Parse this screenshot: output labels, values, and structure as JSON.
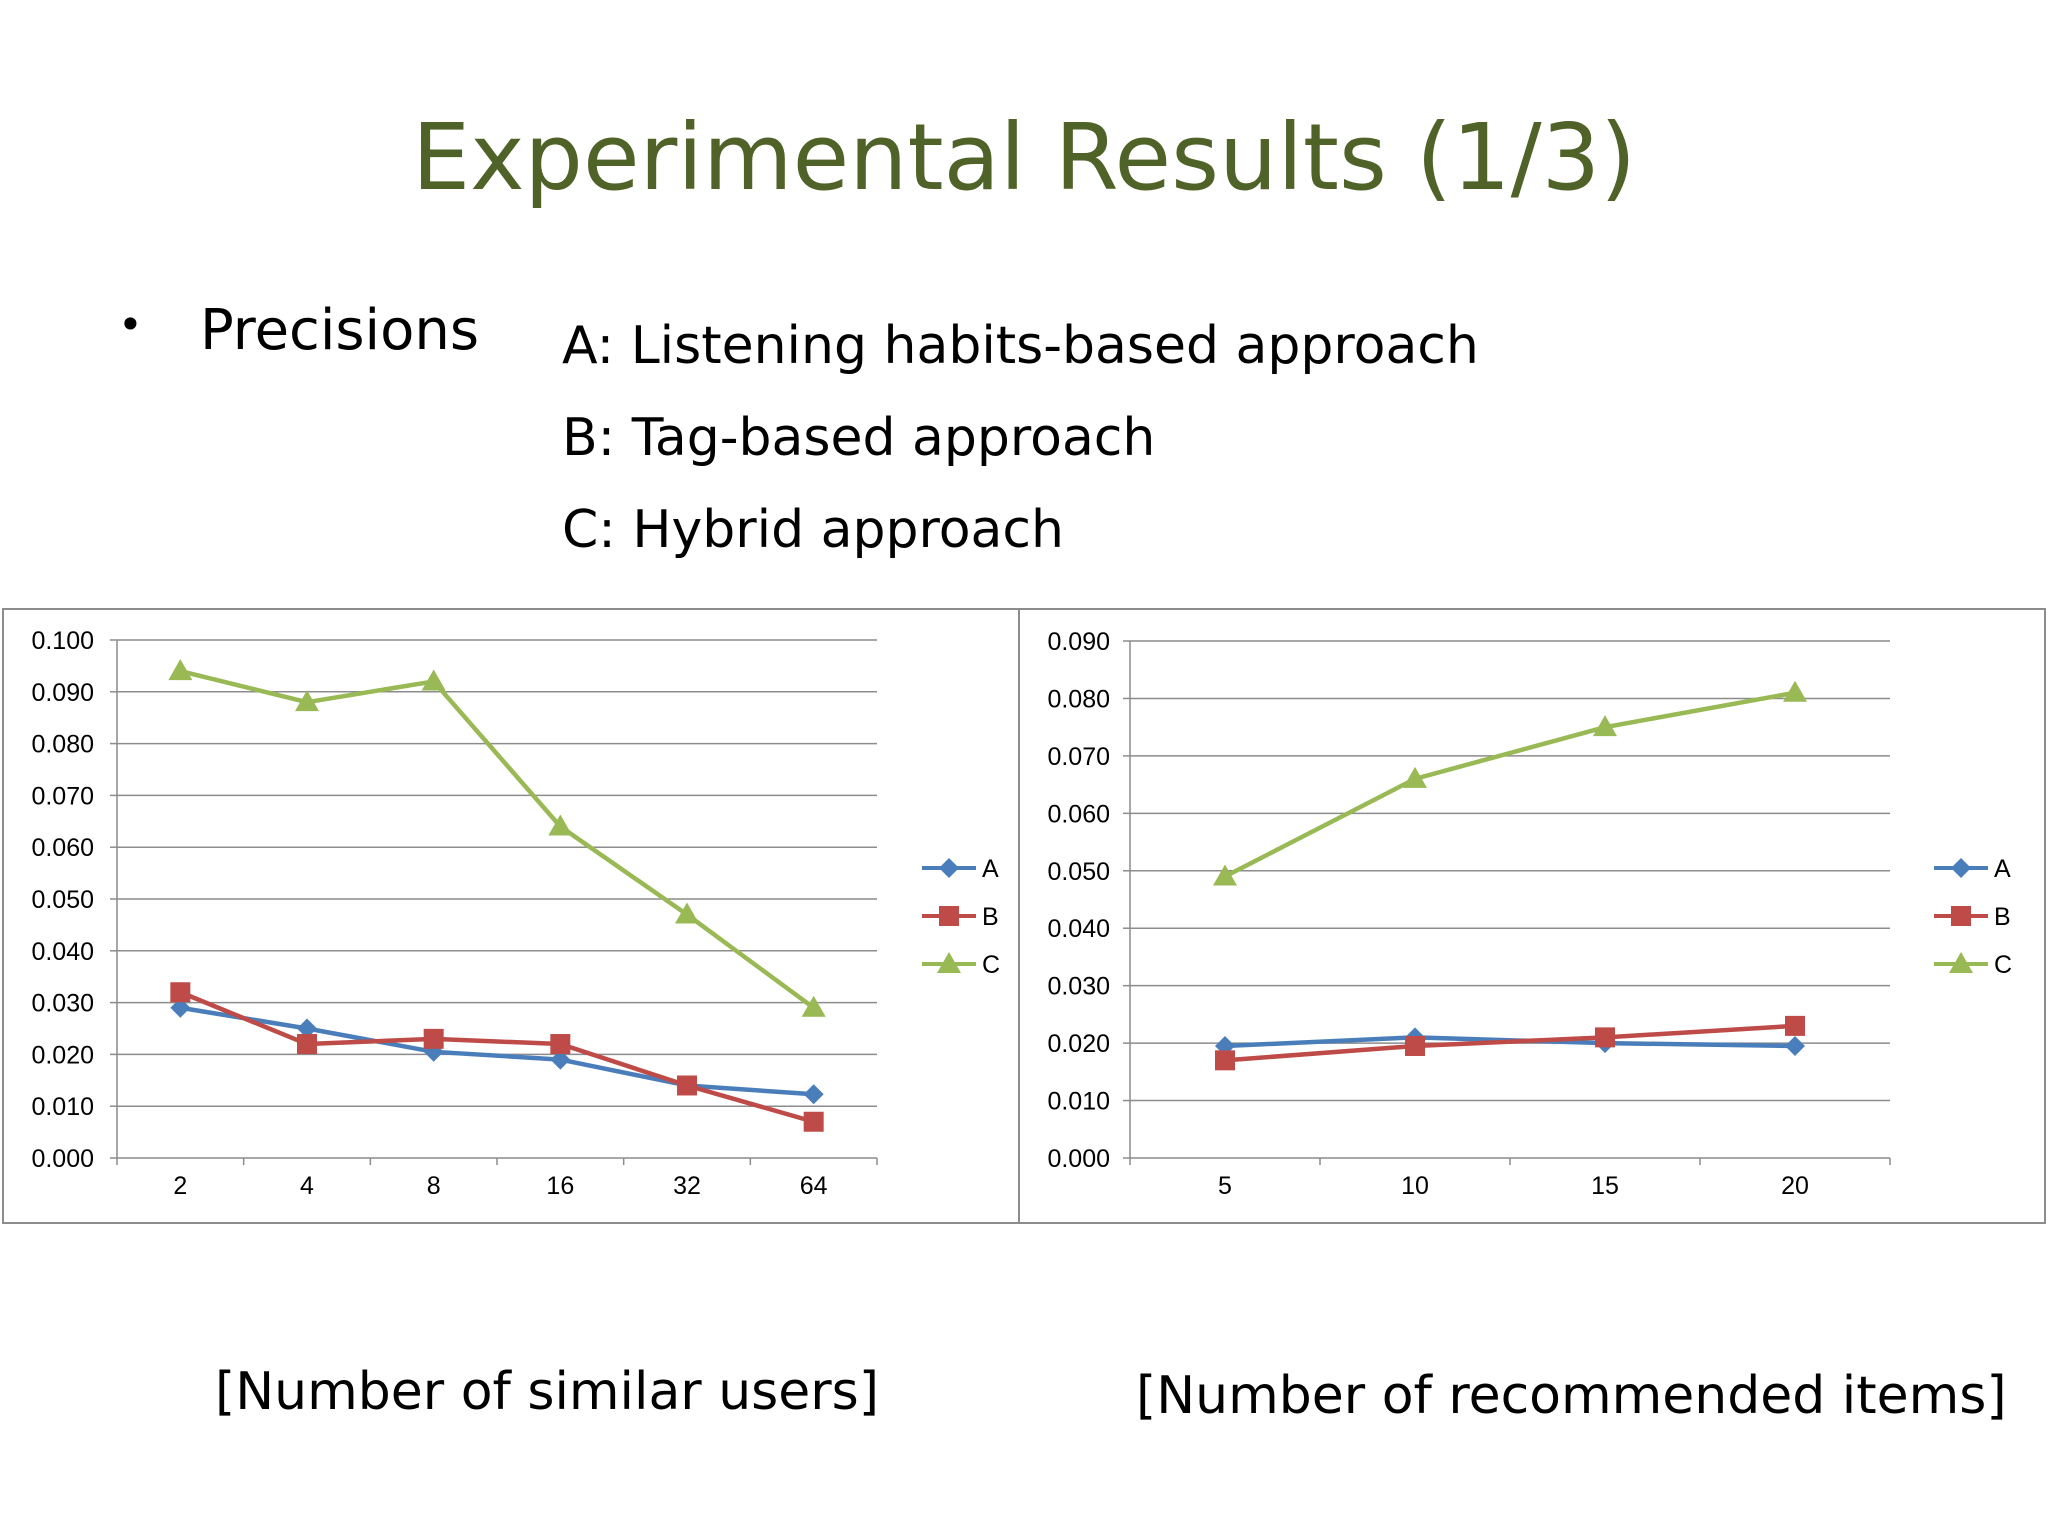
{
  "slide": {
    "title": "Experimental Results (1/3)",
    "bullet": "•",
    "bullet_text": "Precisions",
    "definitions": [
      "A: Listening habits-based approach",
      "B: Tag-based approach",
      "C: Hybrid approach"
    ],
    "captions": [
      "[Number of similar users]",
      "[Number of recommended items]"
    ]
  },
  "chart_data": [
    {
      "type": "line",
      "categories": [
        "2",
        "4",
        "8",
        "16",
        "32",
        "64"
      ],
      "ylim": [
        0,
        0.1
      ],
      "yticks": [
        "0.000",
        "0.010",
        "0.020",
        "0.030",
        "0.040",
        "0.050",
        "0.060",
        "0.070",
        "0.080",
        "0.090",
        "0.100"
      ],
      "grid": true,
      "legend": "right",
      "series": [
        {
          "name": "A",
          "color": "#4a7ebb",
          "marker": "diamond",
          "values": [
            0.029,
            0.025,
            0.0205,
            0.019,
            0.014,
            0.0123
          ]
        },
        {
          "name": "B",
          "color": "#be4b48",
          "marker": "square",
          "values": [
            0.032,
            0.022,
            0.023,
            0.022,
            0.014,
            0.007
          ]
        },
        {
          "name": "C",
          "color": "#98b954",
          "marker": "triangle",
          "values": [
            0.094,
            0.088,
            0.092,
            0.064,
            0.047,
            0.029
          ]
        }
      ]
    },
    {
      "type": "line",
      "categories": [
        "5",
        "10",
        "15",
        "20"
      ],
      "ylim": [
        0,
        0.09
      ],
      "yticks": [
        "0.000",
        "0.010",
        "0.020",
        "0.030",
        "0.040",
        "0.050",
        "0.060",
        "0.070",
        "0.080",
        "0.090"
      ],
      "grid": true,
      "legend": "right",
      "series": [
        {
          "name": "A",
          "color": "#4a7ebb",
          "marker": "diamond",
          "values": [
            0.0195,
            0.021,
            0.02,
            0.0195
          ]
        },
        {
          "name": "B",
          "color": "#be4b48",
          "marker": "square",
          "values": [
            0.017,
            0.0195,
            0.021,
            0.023
          ]
        },
        {
          "name": "C",
          "color": "#98b954",
          "marker": "triangle",
          "values": [
            0.049,
            0.066,
            0.075,
            0.081
          ]
        }
      ]
    }
  ]
}
